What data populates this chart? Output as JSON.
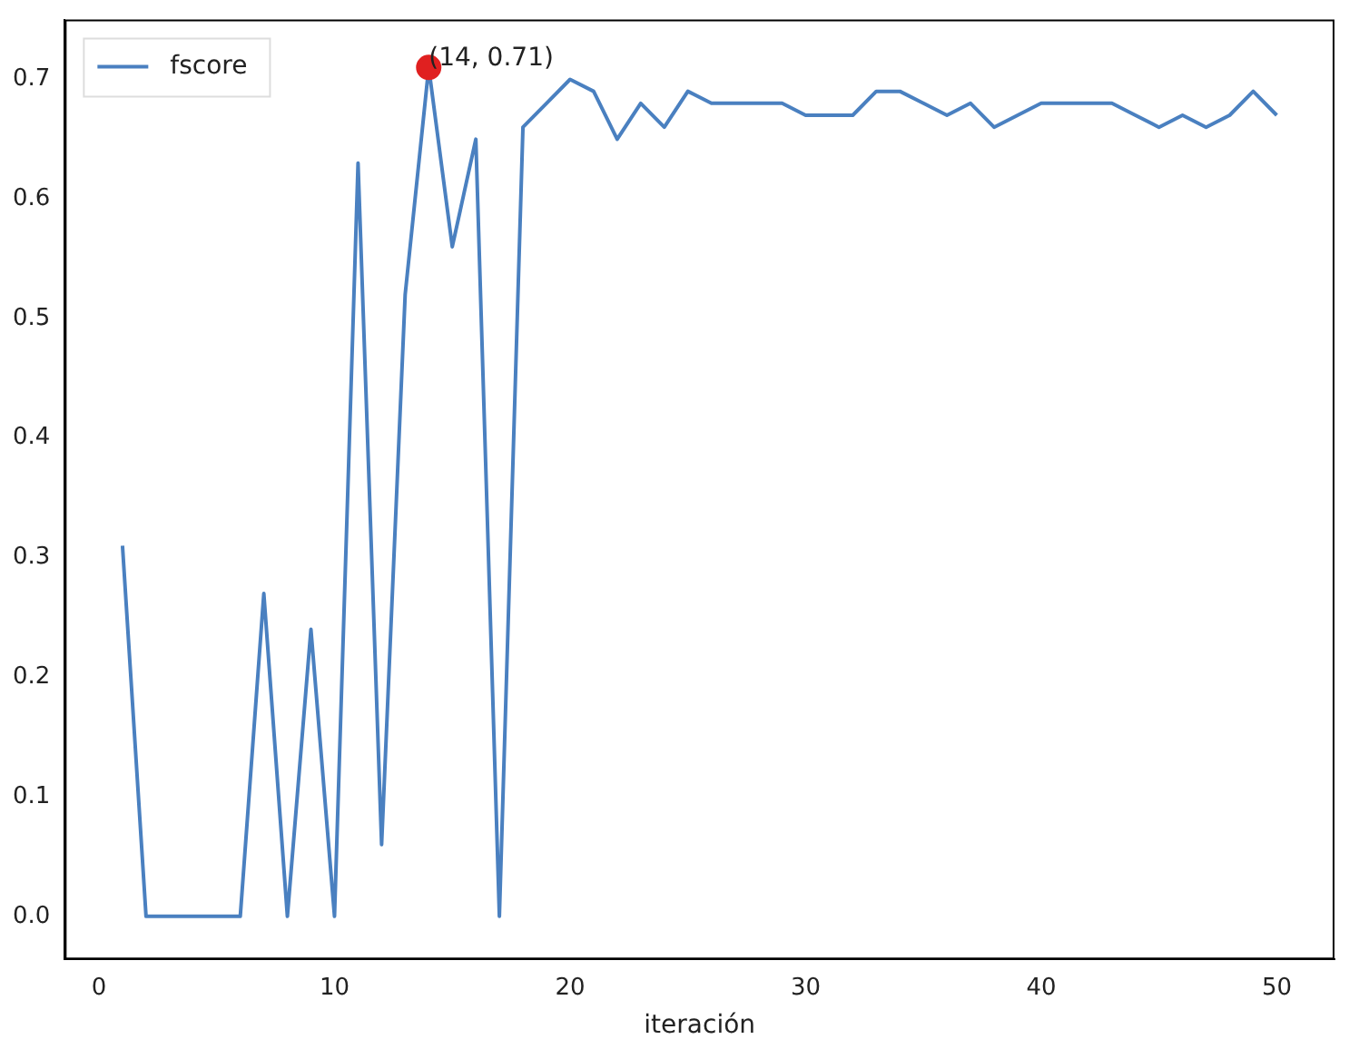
{
  "chart_data": {
    "type": "line",
    "xlabel": "iteración",
    "x": [
      1,
      2,
      3,
      4,
      5,
      6,
      7,
      8,
      9,
      10,
      11,
      12,
      13,
      14,
      15,
      16,
      17,
      18,
      19,
      20,
      21,
      22,
      23,
      24,
      25,
      26,
      27,
      28,
      29,
      30,
      31,
      32,
      33,
      34,
      35,
      36,
      37,
      38,
      39,
      40,
      41,
      42,
      43,
      44,
      45,
      46,
      47,
      48,
      49,
      50
    ],
    "series": [
      {
        "name": "fscore",
        "color": "#4a80c0",
        "values": [
          0.31,
          0,
          0,
          0,
          0,
          0,
          0.27,
          0,
          0.24,
          0,
          0.63,
          0.06,
          0.52,
          0.71,
          0.56,
          0.65,
          0,
          0.66,
          0.68,
          0.7,
          0.69,
          0.65,
          0.68,
          0.66,
          0.69,
          0.68,
          0.68,
          0.68,
          0.68,
          0.67,
          0.67,
          0.67,
          0.69,
          0.69,
          0.68,
          0.67,
          0.68,
          0.66,
          0.67,
          0.68,
          0.68,
          0.68,
          0.68,
          0.67,
          0.66,
          0.67,
          0.66,
          0.67,
          0.69,
          0.67
        ]
      },
      {
        "type": "scatter",
        "marker": "circle",
        "color": "#e02020",
        "x": [
          14
        ],
        "values": [
          0.71
        ]
      }
    ],
    "annotations": [
      {
        "text": "(14, 0.71)",
        "x": 14,
        "y": 0.71
      }
    ],
    "xlim": [
      -1.45,
      52.45
    ],
    "xticks": [
      0,
      10,
      20,
      30,
      40,
      50
    ],
    "ylim": [
      -0.036,
      0.75
    ],
    "yticks": [
      {
        "value": 0,
        "label": "0.0"
      },
      {
        "value": 0.1,
        "label": "0.1"
      },
      {
        "value": 0.2,
        "label": "0.2"
      },
      {
        "value": 0.3,
        "label": "0.3"
      },
      {
        "value": 0.4,
        "label": "0.4"
      },
      {
        "value": 0.5,
        "label": "0.5"
      },
      {
        "value": 0.6,
        "label": "0.6"
      },
      {
        "value": 0.7,
        "label": "0.7"
      }
    ],
    "grid": false,
    "legend": "top left",
    "marker": "none",
    "line_style": "solid"
  }
}
